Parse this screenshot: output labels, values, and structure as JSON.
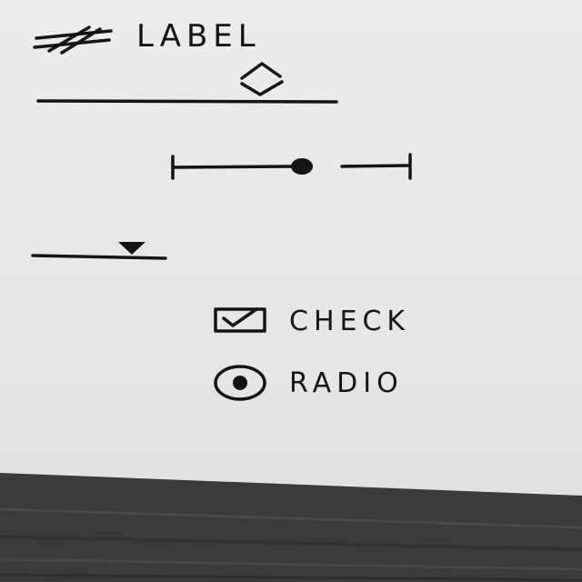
{
  "label_row": {
    "hash_icon": "hash-icon",
    "text": "LABEL"
  },
  "text_field": {
    "stepper_icon": "up-down-chevron-icon"
  },
  "slider": {
    "value_fraction": 0.53
  },
  "dropdown": {
    "arrow_icon": "caret-down-icon"
  },
  "checkbox": {
    "label": "CHECK",
    "checked": true,
    "icon": "checkmark-icon"
  },
  "radio": {
    "label": "RADIO",
    "selected": true,
    "icon": "radio-dot-icon"
  },
  "colors": {
    "ink": "#141414",
    "paper": "#e9e9e9",
    "desk": "#3a3a3a"
  }
}
